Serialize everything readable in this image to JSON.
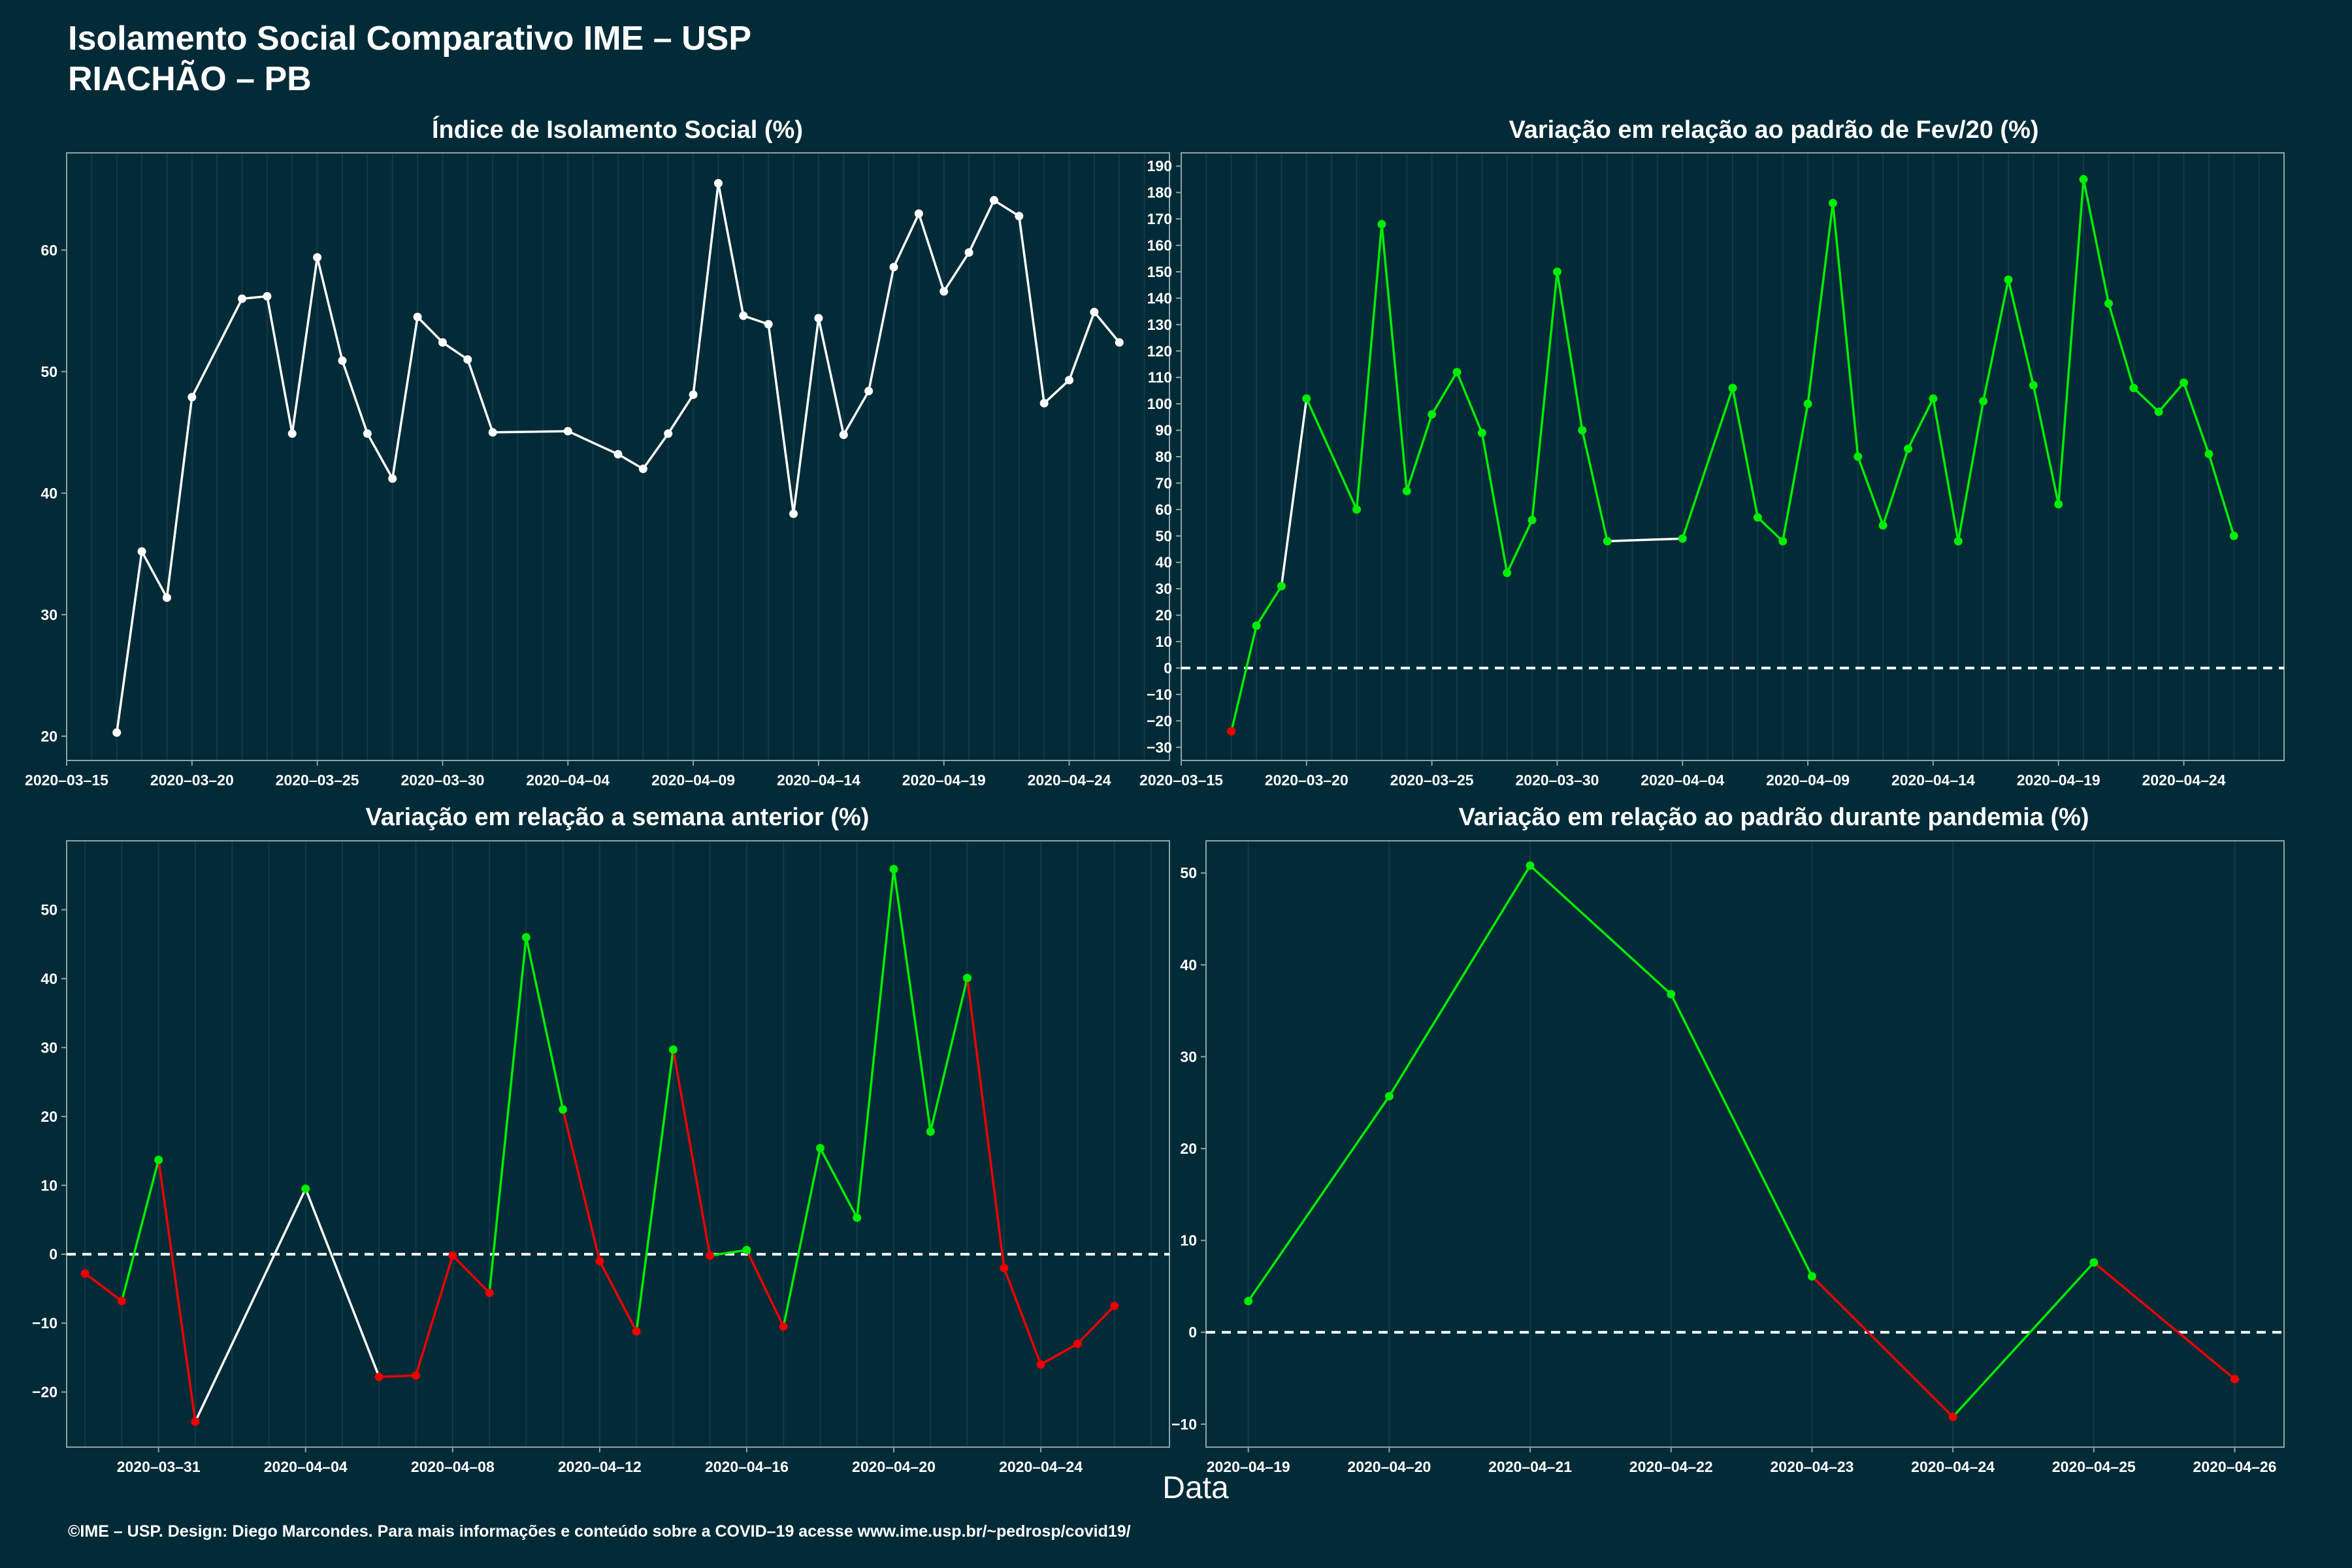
{
  "header": {
    "title_line1": "Isolamento Social Comparativo IME – USP",
    "title_line2": "RIACHÃO – PB"
  },
  "xlabel": "Data",
  "footer": "©IME – USP. Design: Diego Marcondes. Para mais informações e conteúdo sobre a COVID–19 acesse www.ime.usp.br/~pedrosp/covid19/",
  "colors": {
    "background": "#022b37",
    "line_white": "#ffffff",
    "positive": "#00ee00",
    "negative": "#ee0000",
    "frame": "#8fa3a8"
  },
  "chart_data": [
    {
      "type": "line",
      "title": "Índice de Isolamento Social (%)",
      "ylim": [
        18,
        68
      ],
      "yticks": [
        20,
        30,
        40,
        50,
        60
      ],
      "x_start": "2020-03-15",
      "x_end": "2020-04-28",
      "xtick_labels": [
        "2020–03–15",
        "2020–03–20",
        "2020–03–25",
        "2020–03–30",
        "2020–04–04",
        "2020–04–09",
        "2020–04–14",
        "2020–04–19",
        "2020–04–24"
      ],
      "xtick_dates": [
        "2020-03-15",
        "2020-03-20",
        "2020-03-25",
        "2020-03-30",
        "2020-04-04",
        "2020-04-09",
        "2020-04-14",
        "2020-04-19",
        "2020-04-24"
      ],
      "color_mode": "white",
      "series": [
        {
          "x": [
            "2020-03-17",
            "2020-03-18",
            "2020-03-19",
            "2020-03-20",
            "2020-03-22",
            "2020-03-23",
            "2020-03-24",
            "2020-03-25",
            "2020-03-26",
            "2020-03-27",
            "2020-03-28",
            "2020-03-29",
            "2020-03-30",
            "2020-03-31",
            "2020-04-01",
            "2020-04-04",
            "2020-04-06",
            "2020-04-07",
            "2020-04-08",
            "2020-04-09",
            "2020-04-10",
            "2020-04-11",
            "2020-04-12",
            "2020-04-13",
            "2020-04-14",
            "2020-04-15",
            "2020-04-16",
            "2020-04-17",
            "2020-04-18",
            "2020-04-19",
            "2020-04-20",
            "2020-04-21",
            "2020-04-22",
            "2020-04-23",
            "2020-04-24",
            "2020-04-25",
            "2020-04-26"
          ],
          "y": [
            20.3,
            35.2,
            31.4,
            47.9,
            56.0,
            56.2,
            44.9,
            59.4,
            50.9,
            44.9,
            41.2,
            54.5,
            52.4,
            51.0,
            45.0,
            45.1,
            43.2,
            42.0,
            44.9,
            48.1,
            65.5,
            54.6,
            53.9,
            38.3,
            54.4,
            44.8,
            48.4,
            58.6,
            63.0,
            56.6,
            59.8,
            64.1,
            62.8,
            47.4,
            49.3,
            54.9,
            52.4
          ]
        }
      ]
    },
    {
      "type": "line",
      "title": "Variação em relação ao padrão de Fev/20 (%)",
      "ylim": [
        -35,
        195
      ],
      "yticks": [
        -30,
        -20,
        -10,
        0,
        10,
        20,
        30,
        40,
        50,
        60,
        70,
        80,
        90,
        100,
        110,
        120,
        130,
        140,
        150,
        160,
        170,
        180,
        190
      ],
      "x_start": "2020-03-15",
      "x_end": "2020-04-28",
      "xtick_labels": [
        "2020–03–15",
        "2020–03–20",
        "2020–03–25",
        "2020–03–30",
        "2020–04–04",
        "2020–04–09",
        "2020–04–14",
        "2020–04–19",
        "2020–04–24"
      ],
      "xtick_dates": [
        "2020-03-15",
        "2020-03-20",
        "2020-03-25",
        "2020-03-30",
        "2020-04-04",
        "2020-04-09",
        "2020-04-14",
        "2020-04-19",
        "2020-04-24"
      ],
      "color_mode": "sign",
      "zero_line": true,
      "series": [
        {
          "x": [
            "2020-03-17",
            "2020-03-18",
            "2020-03-19",
            "2020-03-20",
            "2020-03-22",
            "2020-03-23",
            "2020-03-24",
            "2020-03-25",
            "2020-03-26",
            "2020-03-27",
            "2020-03-28",
            "2020-03-29",
            "2020-03-30",
            "2020-03-31",
            "2020-04-01",
            "2020-04-04",
            "2020-04-06",
            "2020-04-07",
            "2020-04-08",
            "2020-04-09",
            "2020-04-10",
            "2020-04-11",
            "2020-04-12",
            "2020-04-13",
            "2020-04-14",
            "2020-04-15",
            "2020-04-16",
            "2020-04-17",
            "2020-04-18",
            "2020-04-19",
            "2020-04-20",
            "2020-04-21",
            "2020-04-22",
            "2020-04-23",
            "2020-04-24",
            "2020-04-25",
            "2020-04-26"
          ],
          "y": [
            -24,
            16,
            31,
            102,
            60,
            168,
            67,
            96,
            112,
            89,
            36,
            56,
            150,
            90,
            48,
            49,
            106,
            57,
            48,
            100,
            176,
            80,
            54,
            83,
            102,
            48,
            101,
            147,
            107,
            62,
            185,
            138,
            106,
            97,
            108,
            81,
            50
          ],
          "point_colors": [
            "neg",
            "pos",
            "pos",
            "pos",
            "pos",
            "pos",
            "pos",
            "pos",
            "pos",
            "pos",
            "pos",
            "pos",
            "pos",
            "pos",
            "pos",
            "pos",
            "pos",
            "pos",
            "pos",
            "pos",
            "pos",
            "pos",
            "pos",
            "pos",
            "pos",
            "pos",
            "pos",
            "pos",
            "pos",
            "pos",
            "pos",
            "pos",
            "pos",
            "pos",
            "pos",
            "pos",
            "pos"
          ],
          "segment_colors": [
            "pos",
            "pos",
            "white",
            "pos",
            "pos",
            "pos",
            "pos",
            "pos",
            "pos",
            "pos",
            "pos",
            "pos",
            "pos",
            "pos",
            "white",
            "pos",
            "pos",
            "pos",
            "pos",
            "pos",
            "pos",
            "pos",
            "pos",
            "pos",
            "pos",
            "pos",
            "pos",
            "pos",
            "pos",
            "pos",
            "pos",
            "pos",
            "pos",
            "pos",
            "pos",
            "pos"
          ]
        }
      ]
    },
    {
      "type": "line",
      "title": "Variação em relação a semana anterior (%)",
      "ylim": [
        -28,
        60
      ],
      "yticks": [
        -20,
        -10,
        0,
        10,
        20,
        30,
        40,
        50
      ],
      "x_start": "2020-03-28.5",
      "x_end": "2020-04-27.5",
      "xtick_labels": [
        "2020–03–31",
        "2020–04–04",
        "2020–04–08",
        "2020–04–12",
        "2020–04–16",
        "2020–04–20",
        "2020–04–24"
      ],
      "xtick_dates": [
        "2020-03-31",
        "2020-04-04",
        "2020-04-08",
        "2020-04-12",
        "2020-04-16",
        "2020-04-20",
        "2020-04-24"
      ],
      "color_mode": "sign",
      "zero_line": true,
      "series": [
        {
          "x": [
            "2020-03-29",
            "2020-03-30",
            "2020-03-31",
            "2020-04-01",
            "2020-04-04",
            "2020-04-06",
            "2020-04-07",
            "2020-04-08",
            "2020-04-09",
            "2020-04-10",
            "2020-04-11",
            "2020-04-12",
            "2020-04-13",
            "2020-04-14",
            "2020-04-15",
            "2020-04-16",
            "2020-04-17",
            "2020-04-18",
            "2020-04-19",
            "2020-04-20",
            "2020-04-21",
            "2020-04-22",
            "2020-04-23",
            "2020-04-24",
            "2020-04-25",
            "2020-04-26"
          ],
          "y": [
            -2.8,
            -6.8,
            13.7,
            -24.3,
            9.5,
            -17.8,
            -17.6,
            -0.2,
            -5.6,
            46.0,
            21.0,
            -1.0,
            -11.2,
            29.7,
            -0.2,
            0.6,
            -10.5,
            15.4,
            5.3,
            55.9,
            17.8,
            40.1,
            -2.0,
            -16.0,
            -13.0,
            -7.5
          ],
          "point_colors": [
            "neg",
            "neg",
            "pos",
            "neg",
            "pos",
            "neg",
            "neg",
            "neg",
            "neg",
            "pos",
            "pos",
            "neg",
            "neg",
            "pos",
            "neg",
            "pos",
            "neg",
            "pos",
            "pos",
            "pos",
            "pos",
            "pos",
            "neg",
            "neg",
            "neg",
            "neg"
          ],
          "segment_colors": [
            "neg",
            "pos",
            "neg",
            "white",
            "white",
            "neg",
            "neg",
            "neg",
            "pos",
            "pos",
            "neg",
            "neg",
            "pos",
            "neg",
            "pos",
            "neg",
            "pos",
            "pos",
            "pos",
            "pos",
            "pos",
            "neg",
            "neg",
            "neg",
            "neg"
          ]
        }
      ]
    },
    {
      "type": "line",
      "title": "Variação em relação ao padrão durante pandemia (%)",
      "ylim": [
        -12.5,
        53.5
      ],
      "yticks": [
        -10,
        0,
        10,
        20,
        30,
        40,
        50
      ],
      "x_start": "2020-04-18.7",
      "x_end": "2020-04-26.35",
      "xtick_labels": [
        "2020–04–19",
        "2020–04–20",
        "2020–04–21",
        "2020–04–22",
        "2020–04–23",
        "2020–04–24",
        "2020–04–25",
        "2020–04–26"
      ],
      "xtick_dates": [
        "2020-04-19",
        "2020-04-20",
        "2020-04-21",
        "2020-04-22",
        "2020-04-23",
        "2020-04-24",
        "2020-04-25",
        "2020-04-26"
      ],
      "color_mode": "sign",
      "zero_line": true,
      "series": [
        {
          "x": [
            "2020-04-19",
            "2020-04-20",
            "2020-04-21",
            "2020-04-22",
            "2020-04-23",
            "2020-04-24",
            "2020-04-25",
            "2020-04-26"
          ],
          "y": [
            3.4,
            25.7,
            50.8,
            36.8,
            6.1,
            -9.2,
            7.6,
            -5.1
          ],
          "point_colors": [
            "pos",
            "pos",
            "pos",
            "pos",
            "pos",
            "neg",
            "pos",
            "neg"
          ],
          "segment_colors": [
            "pos",
            "pos",
            "pos",
            "pos",
            "neg",
            "pos",
            "neg"
          ]
        }
      ]
    }
  ]
}
